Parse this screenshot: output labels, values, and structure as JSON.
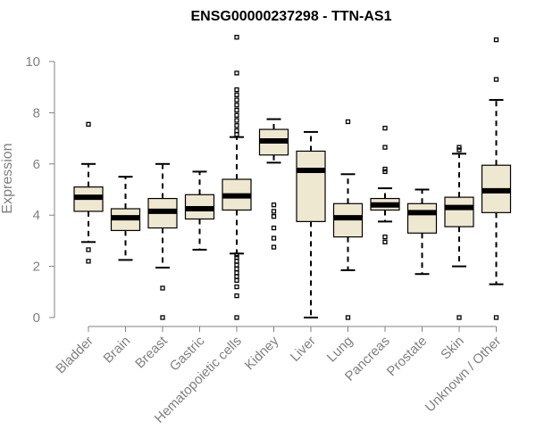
{
  "chart_data": {
    "type": "boxplot",
    "title": "ENSG00000237298 - TTN-AS1",
    "xlabel": "",
    "ylabel": "Expression",
    "ylim": [
      0,
      11
    ],
    "yticks": [
      0,
      2,
      4,
      6,
      8,
      10
    ],
    "box_fill": "#efe8d0",
    "grid": false,
    "categories": [
      "Bladder",
      "Brain",
      "Breast",
      "Gastric",
      "Hematopoietic cells",
      "Kidney",
      "Liver",
      "Lung",
      "Pancreas",
      "Prostate",
      "Skin",
      "Unknown / Other"
    ],
    "boxes": [
      {
        "name": "Bladder",
        "whisker_low": 2.95,
        "q1": 4.15,
        "median": 4.7,
        "q3": 5.1,
        "whisker_high": 6.0,
        "outliers": [
          2.2,
          2.65,
          7.55
        ]
      },
      {
        "name": "Brain",
        "whisker_low": 2.25,
        "q1": 3.4,
        "median": 3.9,
        "q3": 4.25,
        "whisker_high": 5.5,
        "outliers": []
      },
      {
        "name": "Breast",
        "whisker_low": 1.95,
        "q1": 3.5,
        "median": 4.15,
        "q3": 4.65,
        "whisker_high": 6.0,
        "outliers": [
          0.0,
          1.15
        ]
      },
      {
        "name": "Gastric",
        "whisker_low": 2.65,
        "q1": 3.85,
        "median": 4.25,
        "q3": 4.8,
        "whisker_high": 5.7,
        "outliers": []
      },
      {
        "name": "Hematopoietic cells",
        "whisker_low": 2.5,
        "q1": 4.2,
        "median": 4.75,
        "q3": 5.4,
        "whisker_high": 7.05,
        "outliers": [
          0.0,
          0.85,
          1.2,
          1.45,
          1.6,
          1.75,
          1.9,
          2.05,
          2.2,
          2.35,
          2.45,
          7.15,
          7.3,
          7.5,
          7.7,
          7.9,
          8.1,
          8.3,
          8.5,
          8.7,
          8.9,
          9.55,
          10.95
        ]
      },
      {
        "name": "Kidney",
        "whisker_low": 6.05,
        "q1": 6.35,
        "median": 6.9,
        "q3": 7.35,
        "whisker_high": 7.75,
        "outliers": [
          2.75,
          3.1,
          3.5,
          3.95,
          4.15,
          4.4
        ]
      },
      {
        "name": "Liver",
        "whisker_low": 0.0,
        "q1": 3.75,
        "median": 5.75,
        "q3": 6.5,
        "whisker_high": 7.25,
        "outliers": []
      },
      {
        "name": "Lung",
        "whisker_low": 1.85,
        "q1": 3.15,
        "median": 3.9,
        "q3": 4.45,
        "whisker_high": 5.6,
        "outliers": [
          0.0,
          7.65
        ]
      },
      {
        "name": "Pancreas",
        "whisker_low": 3.75,
        "q1": 4.2,
        "median": 4.4,
        "q3": 4.65,
        "whisker_high": 5.05,
        "outliers": [
          2.95,
          3.15,
          5.7,
          5.8,
          6.65,
          7.4
        ]
      },
      {
        "name": "Prostate",
        "whisker_low": 1.7,
        "q1": 3.3,
        "median": 4.1,
        "q3": 4.45,
        "whisker_high": 5.0,
        "outliers": []
      },
      {
        "name": "Skin",
        "whisker_low": 2.0,
        "q1": 3.55,
        "median": 4.3,
        "q3": 4.7,
        "whisker_high": 6.4,
        "outliers": [
          0.0,
          6.55,
          6.65
        ]
      },
      {
        "name": "Unknown / Other",
        "whisker_low": 1.3,
        "q1": 4.1,
        "median": 4.95,
        "q3": 5.95,
        "whisker_high": 8.5,
        "outliers": [
          0.0,
          9.3,
          10.85
        ]
      }
    ]
  }
}
